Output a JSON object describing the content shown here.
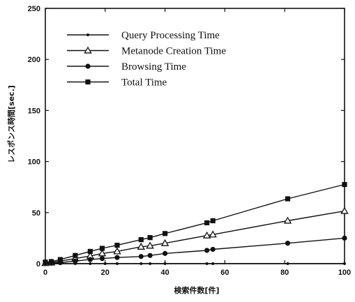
{
  "chart_data": {
    "type": "line",
    "title": "",
    "xlabel": "検索件数[件]",
    "ylabel": "レスポンス時間[sec.]",
    "xlim": [
      0,
      100
    ],
    "ylim": [
      0,
      250
    ],
    "xticks": [
      "0",
      "20",
      "40",
      "60",
      "80",
      "100"
    ],
    "yticks": [
      "0",
      "50",
      "100",
      "150",
      "200",
      "250"
    ],
    "grid": false,
    "legend_position": "top-left",
    "series": [
      {
        "name": "Query Processing Time",
        "marker": "small-dot",
        "points": [
          [
            0,
            0
          ],
          [
            2,
            0
          ],
          [
            5,
            0
          ],
          [
            10,
            0
          ],
          [
            15,
            0
          ],
          [
            20,
            0
          ],
          [
            24,
            0
          ],
          [
            32,
            0
          ],
          [
            35,
            0
          ],
          [
            40,
            0
          ],
          [
            54,
            0
          ],
          [
            56,
            0
          ],
          [
            81,
            0
          ],
          [
            100,
            0
          ]
        ]
      },
      {
        "name": "Metanode Creation Time",
        "marker": "triangle",
        "points": [
          [
            0,
            0.5
          ],
          [
            2,
            1
          ],
          [
            5,
            2.5
          ],
          [
            10,
            5
          ],
          [
            15,
            7.5
          ],
          [
            19,
            10
          ],
          [
            24,
            12
          ],
          [
            32,
            16.5
          ],
          [
            35,
            17.5
          ],
          [
            40,
            20
          ],
          [
            54,
            27.5
          ],
          [
            56,
            28.5
          ],
          [
            81,
            42
          ],
          [
            100,
            51.5
          ]
        ]
      },
      {
        "name": "Browsing Time",
        "marker": "circle",
        "points": [
          [
            0,
            0.5
          ],
          [
            2,
            0.5
          ],
          [
            5,
            1
          ],
          [
            10,
            2.5
          ],
          [
            15,
            4
          ],
          [
            19,
            5
          ],
          [
            24,
            6
          ],
          [
            32,
            7
          ],
          [
            35,
            8
          ],
          [
            40,
            10
          ],
          [
            54,
            13
          ],
          [
            56,
            14
          ],
          [
            81,
            20
          ],
          [
            100,
            25
          ]
        ]
      },
      {
        "name": "Total Time",
        "marker": "square",
        "points": [
          [
            0,
            1.5
          ],
          [
            2,
            2
          ],
          [
            5,
            4
          ],
          [
            10,
            8
          ],
          [
            15,
            12
          ],
          [
            19,
            15
          ],
          [
            24,
            18
          ],
          [
            32,
            23.5
          ],
          [
            35,
            25.5
          ],
          [
            40,
            29.5
          ],
          [
            54,
            40
          ],
          [
            56,
            42
          ],
          [
            81,
            63.5
          ],
          [
            100,
            77.5
          ]
        ]
      }
    ]
  }
}
